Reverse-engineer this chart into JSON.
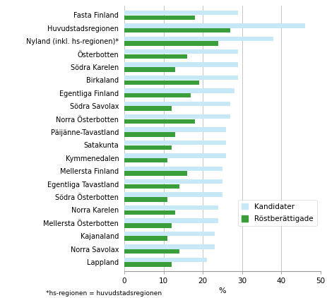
{
  "categories": [
    "Fasta Finland",
    "Huvudstadsregionen",
    "Nyland (inkl. hs-regionen)*",
    "Österbotten",
    "Södra Karelen",
    "Birkaland",
    "Egentliga Finland",
    "Södra Savolax",
    "Norra Österbotten",
    "Päijänne-Tavastland",
    "Satakunta",
    "Kymmenedalen",
    "Mellersta Finland",
    "Egentliga Tavastland",
    "Södra Österbotten",
    "Norra Karelen",
    "Mellersta Österbotten",
    "Kajanaland",
    "Norra Savolax",
    "Lappland"
  ],
  "kandidater": [
    29,
    46,
    38,
    29,
    29,
    29,
    28,
    27,
    27,
    26,
    26,
    26,
    25,
    25,
    25,
    24,
    24,
    23,
    23,
    21
  ],
  "rostberättigade": [
    18,
    27,
    24,
    16,
    13,
    19,
    17,
    12,
    18,
    13,
    12,
    11,
    16,
    14,
    11,
    13,
    12,
    11,
    14,
    12
  ],
  "bar_color_kand": "#c6e8f7",
  "bar_color_rost": "#3a9e3a",
  "grid_color": "#bbbbbb",
  "footnote": "*hs-regionen = huvudstadsregionen",
  "xlabel": "%",
  "xlim": [
    0,
    50
  ],
  "xticks": [
    0,
    10,
    20,
    30,
    40,
    50
  ],
  "bar_height": 0.35,
  "bar_gap": 0.02,
  "legend_labels": [
    "Kandidater",
    "Röstberättigade"
  ]
}
